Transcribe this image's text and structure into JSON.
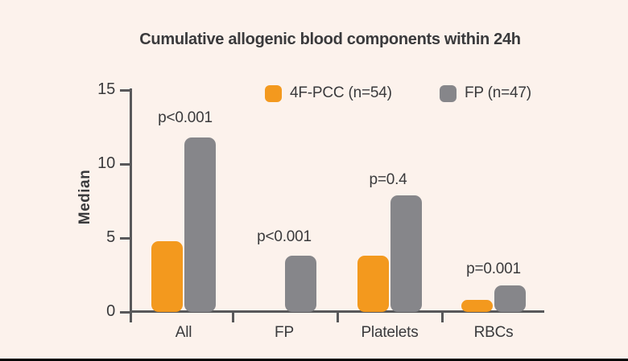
{
  "colors": {
    "background": "#fcf2ec",
    "orange": "#f3991e",
    "gray": "#86868a",
    "axis": "#58585a",
    "text": "#3a3a3c",
    "bottom_bar": "#000000"
  },
  "chart_data": {
    "type": "bar",
    "title": "Cumulative allogenic blood components within 24h",
    "xlabel": "",
    "ylabel": "Median",
    "categories": [
      "All",
      "FP",
      "Platelets",
      "RBCs"
    ],
    "series": [
      {
        "name": "4F-PCC (n=54)",
        "color": "#f3991e",
        "values": [
          4.8,
          0,
          3.8,
          0.8
        ]
      },
      {
        "name": "FP (n=47)",
        "color": "#86868a",
        "values": [
          11.8,
          3.8,
          7.9,
          1.8
        ]
      }
    ],
    "p_values": [
      "p<0.001",
      "p<0.001",
      "p=0.4",
      "p=0.001"
    ],
    "ylim": [
      0,
      15
    ],
    "yticks": [
      0,
      5,
      10,
      15
    ],
    "grid": false,
    "legend_position": "top-center"
  }
}
